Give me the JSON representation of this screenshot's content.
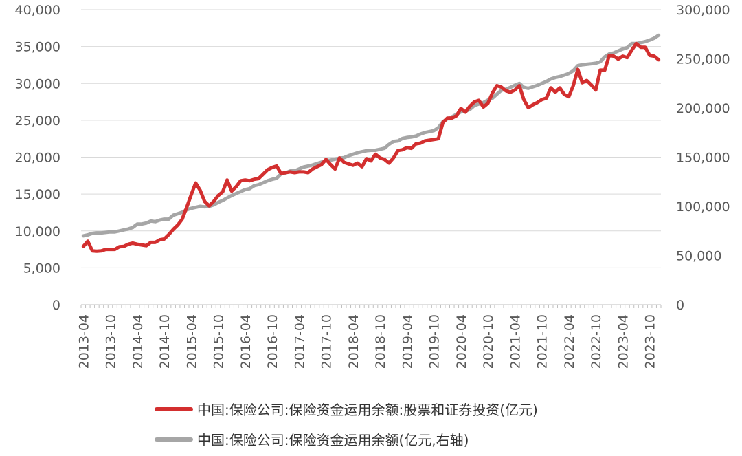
{
  "chart_data": {
    "type": "line",
    "y_left": {
      "ylim": [
        0,
        40000
      ],
      "ticks": [
        "0",
        "5,000",
        "10,000",
        "15,000",
        "20,000",
        "25,000",
        "30,000",
        "35,000",
        "40,000"
      ]
    },
    "y_right": {
      "ylim": [
        0,
        300000
      ],
      "ticks": [
        "0",
        "50,000",
        "100,000",
        "150,000",
        "200,000",
        "250,000",
        "300,000"
      ]
    },
    "x_ticks": [
      "2013-04",
      "2013-10",
      "2014-04",
      "2014-10",
      "2015-04",
      "2015-10",
      "2016-04",
      "2016-10",
      "2017-04",
      "2017-10",
      "2018-04",
      "2018-10",
      "2019-04",
      "2019-10",
      "2020-04",
      "2020-10",
      "2021-04",
      "2021-10",
      "2022-04",
      "2022-10",
      "2023-04",
      "2023-10"
    ],
    "x_start": "2013-04",
    "grid": "horizontal",
    "legend_position": "bottom",
    "series": [
      {
        "name": "中国:保险公司:保险资金运用余额:股票和证券投资(亿元)",
        "axis": "left",
        "color": "#D32F2F",
        "values": [
          7900,
          8600,
          7300,
          7250,
          7300,
          7500,
          7500,
          7500,
          7850,
          7900,
          8200,
          8350,
          8200,
          8100,
          8000,
          8450,
          8450,
          8800,
          8900,
          9500,
          10200,
          10800,
          11600,
          13200,
          14900,
          16500,
          15500,
          14000,
          13400,
          14000,
          14800,
          15300,
          16900,
          15400,
          16000,
          16800,
          16900,
          16800,
          17000,
          17100,
          17700,
          18300,
          18600,
          18800,
          17800,
          17900,
          18000,
          17900,
          18000,
          18000,
          17900,
          18400,
          18700,
          19000,
          19700,
          19000,
          18400,
          19900,
          19300,
          19100,
          18900,
          19200,
          18700,
          19800,
          19500,
          20400,
          19900,
          19700,
          19200,
          19900,
          20900,
          21000,
          21300,
          21200,
          21800,
          21900,
          22200,
          22300,
          22400,
          22500,
          24700,
          25300,
          25300,
          25600,
          26600,
          26100,
          26900,
          27500,
          27700,
          26800,
          27300,
          28700,
          29700,
          29500,
          29000,
          28800,
          29100,
          29700,
          27800,
          26700,
          27100,
          27400,
          27800,
          28000,
          29400,
          28800,
          29400,
          28500,
          28200,
          29700,
          31900,
          30100,
          30400,
          29800,
          29100,
          31800,
          31800,
          33800,
          33700,
          33300,
          33700,
          33500,
          34500,
          35400,
          34900,
          34900,
          33800,
          33700,
          33200
        ]
      },
      {
        "name": "中国:保险公司:保险资金运用余额(亿元,右轴)",
        "axis": "right",
        "color": "#A6A6A6",
        "values": [
          70000,
          71000,
          72500,
          73000,
          73000,
          73500,
          74000,
          74000,
          75000,
          76000,
          77000,
          78500,
          82000,
          82000,
          83000,
          85000,
          84500,
          86000,
          87000,
          87000,
          91000,
          92500,
          94000,
          96500,
          98000,
          99000,
          100000,
          99500,
          100000,
          101500,
          104000,
          106000,
          108500,
          111000,
          113000,
          115000,
          117000,
          118000,
          121000,
          122000,
          124000,
          126000,
          127500,
          128500,
          133000,
          134000,
          136000,
          136000,
          138000,
          140000,
          141000,
          142000,
          143500,
          145000,
          146500,
          147000,
          148000,
          149000,
          149500,
          151500,
          153000,
          154500,
          155500,
          156500,
          157000,
          157000,
          158000,
          159000,
          163000,
          166000,
          166500,
          169000,
          170000,
          170500,
          171500,
          173500,
          175000,
          176000,
          177000,
          180000,
          186000,
          189000,
          191000,
          193500,
          196000,
          196500,
          198500,
          202500,
          204000,
          205500,
          208000,
          210000,
          214000,
          218000,
          219000,
          221000,
          223000,
          225000,
          221000,
          220000,
          221500,
          223000,
          225000,
          227000,
          229500,
          231000,
          232000,
          233500,
          235000,
          238000,
          243000,
          244000,
          244500,
          245000,
          245500,
          247000,
          252000,
          255000,
          256000,
          258000,
          260000,
          261500,
          265500,
          265500,
          266500,
          267500,
          269000,
          271000,
          274000
        ]
      }
    ]
  }
}
